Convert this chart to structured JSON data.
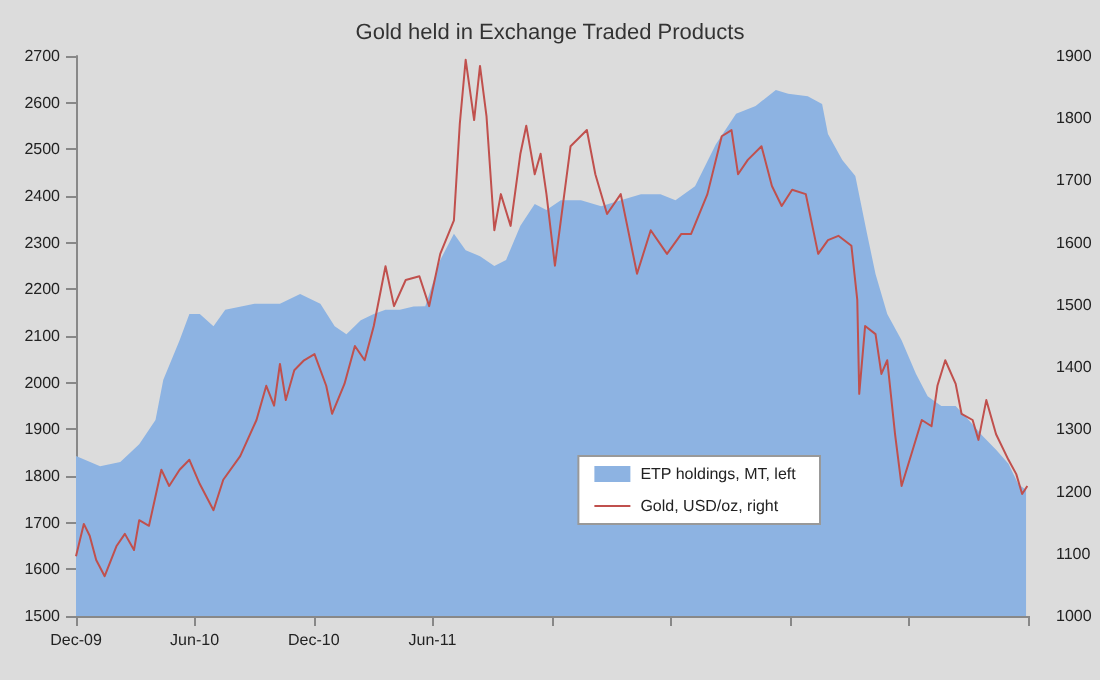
{
  "chart_data": {
    "type": "area",
    "title": "Gold held in Exchange Traded Products",
    "xlim": [
      "2009-12-01",
      "2013-12-01"
    ],
    "xticks": [
      {
        "value": "2009-12-01",
        "label": "Dec-09"
      },
      {
        "value": "2010-06-01",
        "label": "Jun-10"
      },
      {
        "value": "2010-12-01",
        "label": "Dec-10"
      },
      {
        "value": "2011-06-01",
        "label": "Jun-11"
      },
      {
        "value": "2011-12-01",
        "label": null
      },
      {
        "value": "2012-06-01",
        "label": null
      },
      {
        "value": "2012-12-01",
        "label": null
      },
      {
        "value": "2013-06-01",
        "label": null
      },
      {
        "value": "2013-12-01",
        "label": null
      }
    ],
    "ylim": [
      1500,
      2700
    ],
    "yticks": [
      1500,
      1600,
      1700,
      1800,
      1900,
      2000,
      2100,
      2200,
      2300,
      2400,
      2500,
      2600,
      2700
    ],
    "y2lim": [
      1000,
      1900
    ],
    "y2ticks": [
      1000,
      1100,
      1200,
      1300,
      1400,
      1500,
      1600,
      1700,
      1800,
      1900
    ],
    "grid": false,
    "legend": "bottom right",
    "series": [
      {
        "name": "ETP holdings, MT, left",
        "color": "#8db3e2",
        "x": [
          "2009-12-01",
          "2010-01-07",
          "2010-02-07",
          "2010-03-08",
          "2010-04-02",
          "2010-04-14",
          "2010-05-09",
          "2010-05-24",
          "2010-06-09",
          "2010-06-30",
          "2010-07-18",
          "2010-09-01",
          "2010-10-10",
          "2010-11-10",
          "2010-12-11",
          "2011-01-02",
          "2011-01-20",
          "2011-02-11",
          "2011-03-03",
          "2011-03-21",
          "2011-04-12",
          "2011-05-03",
          "2011-05-21",
          "2011-06-13",
          "2011-07-04",
          "2011-07-22",
          "2011-08-13",
          "2011-09-04",
          "2011-09-22",
          "2011-10-14",
          "2011-11-05",
          "2011-11-23",
          "2011-12-15",
          "2012-01-15",
          "2012-02-15",
          "2012-03-16",
          "2012-04-16",
          "2012-05-16",
          "2012-06-08",
          "2012-07-08",
          "2012-08-09",
          "2012-09-09",
          "2012-10-09",
          "2012-11-09",
          "2012-11-28",
          "2012-12-28",
          "2013-01-19",
          "2013-01-28",
          "2013-02-19",
          "2013-03-11",
          "2013-03-29",
          "2013-04-11",
          "2013-04-29",
          "2013-05-21",
          "2013-06-12",
          "2013-06-30",
          "2013-07-21",
          "2013-08-12",
          "2013-09-01",
          "2013-09-22",
          "2013-10-13",
          "2013-11-01",
          "2013-11-16",
          "2013-11-28"
        ],
        "values": [
          1843,
          1821,
          1830,
          1868,
          1920,
          2006,
          2091,
          2147,
          2147,
          2121,
          2156,
          2169,
          2169,
          2190,
          2169,
          2121,
          2104,
          2134,
          2147,
          2156,
          2156,
          2163,
          2164,
          2263,
          2319,
          2284,
          2271,
          2250,
          2263,
          2336,
          2383,
          2370,
          2391,
          2391,
          2378,
          2391,
          2404,
          2404,
          2391,
          2421,
          2511,
          2576,
          2593,
          2627,
          2619,
          2614,
          2597,
          2533,
          2477,
          2443,
          2319,
          2233,
          2147,
          2091,
          2019,
          1971,
          1950,
          1950,
          1920,
          1886,
          1856,
          1826,
          1783,
          1770
        ]
      },
      {
        "name": "Gold, USD/oz, right",
        "type": "line",
        "axis": "y2",
        "color": "#c0504d",
        "x": [
          "2009-12-01",
          "2009-12-13",
          "2009-12-22",
          "2010-01-01",
          "2010-01-14",
          "2010-02-01",
          "2010-02-14",
          "2010-02-28",
          "2010-03-08",
          "2010-03-23",
          "2010-04-11",
          "2010-04-23",
          "2010-05-09",
          "2010-05-24",
          "2010-06-09",
          "2010-06-30",
          "2010-07-15",
          "2010-08-10",
          "2010-09-04",
          "2010-09-19",
          "2010-10-01",
          "2010-10-10",
          "2010-10-19",
          "2010-11-01",
          "2010-11-16",
          "2010-12-02",
          "2010-12-20",
          "2010-12-29",
          "2011-01-17",
          "2011-02-02",
          "2011-02-17",
          "2011-03-03",
          "2011-03-21",
          "2011-04-03",
          "2011-04-21",
          "2011-05-12",
          "2011-05-27",
          "2011-06-13",
          "2011-07-04",
          "2011-07-13",
          "2011-07-22",
          "2011-08-04",
          "2011-08-13",
          "2011-08-23",
          "2011-09-04",
          "2011-09-14",
          "2011-09-29",
          "2011-10-14",
          "2011-10-23",
          "2011-11-05",
          "2011-11-14",
          "2011-11-23",
          "2011-12-06",
          "2011-12-30",
          "2012-01-24",
          "2012-02-06",
          "2012-02-24",
          "2012-03-16",
          "2012-04-10",
          "2012-05-01",
          "2012-05-26",
          "2012-06-17",
          "2012-07-02",
          "2012-07-27",
          "2012-08-18",
          "2012-09-02",
          "2012-09-12",
          "2012-09-27",
          "2012-10-18",
          "2012-11-03",
          "2012-11-18",
          "2012-12-04",
          "2012-12-25",
          "2013-01-13",
          "2013-01-28",
          "2013-02-13",
          "2013-03-05",
          "2013-03-14",
          "2013-03-17",
          "2013-03-26",
          "2013-04-11",
          "2013-04-20",
          "2013-04-29",
          "2013-05-11",
          "2013-05-21",
          "2013-06-05",
          "2013-06-21",
          "2013-07-06",
          "2013-07-15",
          "2013-07-27",
          "2013-08-12",
          "2013-08-21",
          "2013-09-07",
          "2013-09-16",
          "2013-09-28",
          "2013-10-13",
          "2013-11-01",
          "2013-11-13",
          "2013-11-22",
          "2013-11-30"
        ],
        "values": [
          1096,
          1148,
          1129,
          1090,
          1064,
          1112,
          1132,
          1106,
          1154,
          1145,
          1235,
          1209,
          1235,
          1251,
          1212,
          1170,
          1219,
          1257,
          1315,
          1370,
          1338,
          1405,
          1347,
          1395,
          1411,
          1421,
          1370,
          1325,
          1373,
          1434,
          1411,
          1466,
          1562,
          1498,
          1540,
          1546,
          1498,
          1582,
          1636,
          1791,
          1894,
          1797,
          1884,
          1803,
          1620,
          1678,
          1627,
          1743,
          1788,
          1710,
          1743,
          1678,
          1563,
          1755,
          1781,
          1710,
          1646,
          1678,
          1550,
          1620,
          1582,
          1614,
          1614,
          1678,
          1771,
          1781,
          1710,
          1733,
          1755,
          1691,
          1659,
          1685,
          1678,
          1582,
          1604,
          1611,
          1595,
          1508,
          1357,
          1466,
          1453,
          1389,
          1411,
          1292,
          1209,
          1260,
          1315,
          1305,
          1370,
          1411,
          1373,
          1325,
          1315,
          1283,
          1347,
          1292,
          1251,
          1228,
          1196,
          1209
        ]
      }
    ]
  }
}
